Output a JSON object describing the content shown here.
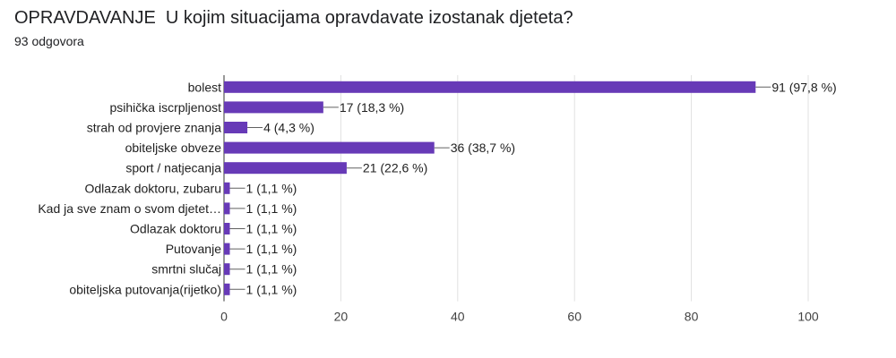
{
  "header": {
    "title": "OPRAVDAVANJE  U kojim situacijama opravdavate izostanak djeteta?",
    "responses": "93 odgovora"
  },
  "colors": {
    "bar": "#673ab7",
    "grid": "#e0e0e0",
    "axis": "#333333",
    "text": "#212121"
  },
  "chart_data": {
    "type": "bar",
    "orientation": "horizontal",
    "categories": [
      "bolest",
      "psihička iscrpljenost",
      "strah od provjere znanja",
      "obiteljske obveze",
      "sport / natjecanja",
      "Odlazak doktoru, zubaru",
      "Kad ja sve znam o svom djetet…",
      "Odlazak doktoru",
      "Putovanje",
      "smrtni slučaj",
      "obiteljska putovanja(rijetko)"
    ],
    "values": [
      91,
      17,
      4,
      36,
      21,
      1,
      1,
      1,
      1,
      1,
      1
    ],
    "data_labels": [
      "91 (97,8 %)",
      "17 (18,3 %)",
      "4 (4,3 %)",
      "36 (38,7 %)",
      "21 (22,6 %)",
      "1 (1,1 %)",
      "1 (1,1 %)",
      "1 (1,1 %)",
      "1 (1,1 %)",
      "1 (1,1 %)",
      "1 (1,1 %)"
    ],
    "xlim": [
      0,
      100
    ],
    "xticks": [
      "0",
      "20",
      "40",
      "60",
      "80",
      "100"
    ],
    "grid": true
  }
}
